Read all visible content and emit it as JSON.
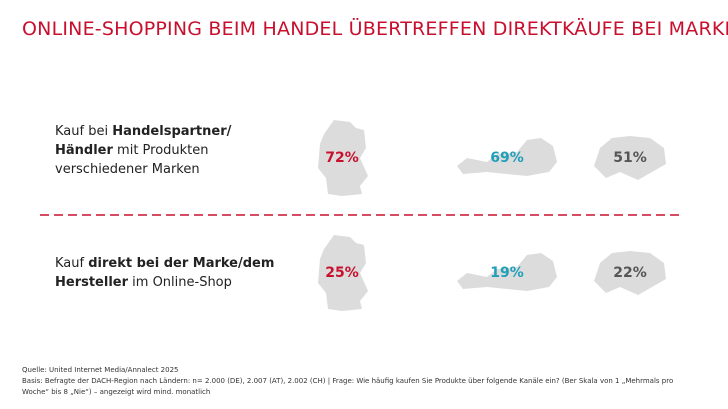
{
  "title": "ONLINE-SHOPPING BEIM HANDEL ÜBERTREFFEN DIREKTKÄUFE BEI MARKEN",
  "rows": [
    {
      "label": [
        [
          {
            "text": "Kauf bei ",
            "bold": false
          },
          {
            "text": "Handelspartner/",
            "bold": true
          }
        ],
        [
          {
            "text": "Händler",
            "bold": true
          },
          {
            "text": " mit Produkten",
            "bold": false
          }
        ],
        [
          {
            "text": "verschiedener Marken",
            "bold": false
          }
        ]
      ],
      "values": [
        "72%",
        "69%",
        "51%"
      ]
    },
    {
      "label": [
        [
          {
            "text": "Kauf ",
            "bold": false
          },
          {
            "text": "direkt bei der Marke/dem",
            "bold": true
          }
        ],
        [
          {
            "text": "Hersteller",
            "bold": true
          },
          {
            "text": " im Online-Shop",
            "bold": false
          }
        ]
      ],
      "values": [
        "25%",
        "19%",
        "22%"
      ]
    }
  ],
  "value_colors": [
    "#c8102e",
    "#1f9fb8",
    "#555555"
  ],
  "footer": [
    "Quelle: United Internet Media/Annalect 2025",
    "Basis: Befragte der DACH-Region nach Ländern: n= 2.000 (DE), 2.007 (AT), 2.002 (CH) | Frage: Wie häufig kaufen Sie Produkte über folgende Kanäle ein? (Ber Skala von 1 „Mehrmals pro",
    "Woche“ bis 8 „Nie“) – angezeigt wird mind. monatlich"
  ]
}
